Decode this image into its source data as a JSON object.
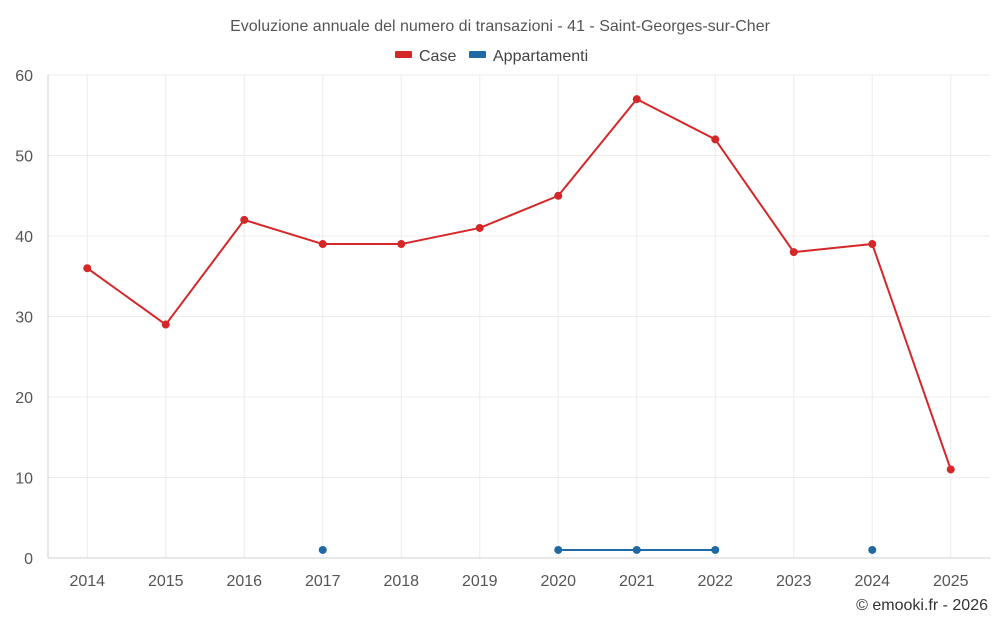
{
  "chart_data": {
    "type": "line",
    "title": "Evoluzione annuale del numero di transazioni - 41 - Saint-Georges-sur-Cher",
    "categories": [
      "2014",
      "2015",
      "2016",
      "2017",
      "2018",
      "2019",
      "2020",
      "2021",
      "2022",
      "2023",
      "2024",
      "2025"
    ],
    "series": [
      {
        "name": "Case",
        "color": "#d62728",
        "values": [
          36,
          29,
          42,
          39,
          39,
          41,
          45,
          57,
          52,
          38,
          39,
          11
        ]
      },
      {
        "name": "Appartamenti",
        "color": "#1f6aa5",
        "values": [
          null,
          null,
          null,
          1,
          null,
          null,
          1,
          1,
          1,
          null,
          1,
          null
        ]
      }
    ],
    "ylim": [
      0,
      60
    ],
    "yticks": [
      0,
      10,
      20,
      30,
      40,
      50,
      60
    ],
    "legend_position": "top-center",
    "grid": true
  },
  "credit": "© emooki.fr - 2026"
}
